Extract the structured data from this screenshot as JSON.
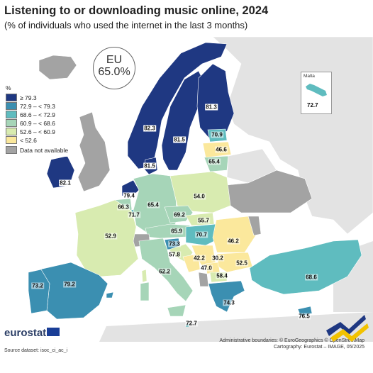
{
  "header": {
    "title": "Listening to or downloading music online, 2024",
    "subtitle": "(% of individuals who used the internet in the last 3 months)"
  },
  "eu": {
    "label": "EU",
    "value": "65.0%"
  },
  "legend": {
    "title": "%",
    "items": [
      {
        "label": "≥ 79.3",
        "color": "#1f3882"
      },
      {
        "label": "72.9 – < 79.3",
        "color": "#3b8fb1"
      },
      {
        "label": "68.6 – < 72.9",
        "color": "#5fbcbf"
      },
      {
        "label": "60.9 – < 68.6",
        "color": "#a6d5b8"
      },
      {
        "label": "52.6 – < 60.9",
        "color": "#d8ebb0"
      },
      {
        "label": "< 52.6",
        "color": "#fbe89c"
      }
    ],
    "not_available": {
      "label": "Data not available",
      "color": "#a3a3a3"
    }
  },
  "malta": {
    "name": "Malta",
    "value": "72.7"
  },
  "countries": [
    {
      "id": "norway",
      "value": "82.3"
    },
    {
      "id": "sweden",
      "value": "81.5"
    },
    {
      "id": "finland",
      "value": "81.3"
    },
    {
      "id": "estonia",
      "value": "70.9"
    },
    {
      "id": "latvia",
      "value": "46.6"
    },
    {
      "id": "lithuania",
      "value": "65.4"
    },
    {
      "id": "denmark",
      "value": "81.5"
    },
    {
      "id": "ireland",
      "value": "82.1"
    },
    {
      "id": "netherlands",
      "value": "79.4"
    },
    {
      "id": "belgium",
      "value": "66.3"
    },
    {
      "id": "luxembourg",
      "value": "71.7"
    },
    {
      "id": "germany",
      "value": "65.4"
    },
    {
      "id": "poland",
      "value": "54.0"
    },
    {
      "id": "czechia",
      "value": "69.2"
    },
    {
      "id": "slovakia",
      "value": "55.7"
    },
    {
      "id": "austria",
      "value": "65.9"
    },
    {
      "id": "hungary",
      "value": "70.7"
    },
    {
      "id": "slovenia",
      "value": "73.3"
    },
    {
      "id": "croatia",
      "value": "57.8"
    },
    {
      "id": "romania",
      "value": "46.2"
    },
    {
      "id": "serbia",
      "value": "42.2"
    },
    {
      "id": "bosnia",
      "value": "47.0"
    },
    {
      "id": "kosovo",
      "value": "30.2"
    },
    {
      "id": "bulgaria",
      "value": "52.5"
    },
    {
      "id": "north-macedonia",
      "value": "58.4"
    },
    {
      "id": "france",
      "value": "52.9"
    },
    {
      "id": "italy",
      "value": "62.2"
    },
    {
      "id": "spain",
      "value": "79.2"
    },
    {
      "id": "portugal",
      "value": "73.2"
    },
    {
      "id": "greece",
      "value": "74.3"
    },
    {
      "id": "turkiye",
      "value": "68.6"
    },
    {
      "id": "cyprus",
      "value": "76.5"
    },
    {
      "id": "malta-main",
      "value": "72.7"
    }
  ],
  "footer": {
    "brand": "eurostat",
    "source": "Source dataset: isoc_ci_ac_i",
    "credit1": "Administrative boundaries: © EuroGeographics © OpenStreetMap",
    "credit2": "Cartography: Eurostat – IMAGE, 05/2025"
  }
}
